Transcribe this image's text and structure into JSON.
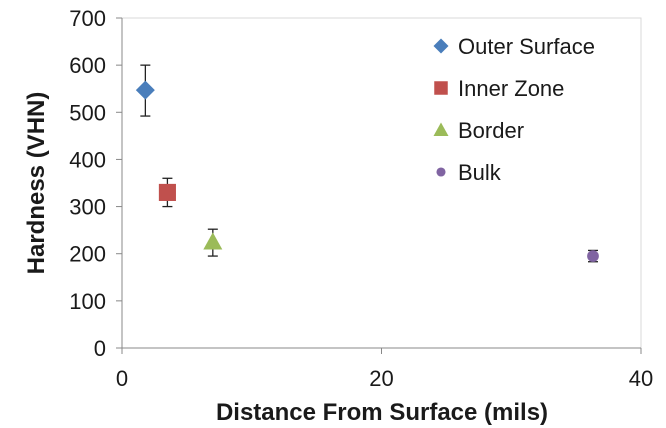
{
  "chart_data": {
    "type": "scatter",
    "xlabel": "Distance From Surface (mils)",
    "ylabel": "Hardness (VHN)",
    "xlim": [
      0,
      40
    ],
    "ylim": [
      0,
      700
    ],
    "xticks": [
      0,
      20,
      40
    ],
    "yticks": [
      0,
      100,
      200,
      300,
      400,
      500,
      600,
      700
    ],
    "grid": false,
    "legend_position": "top-right",
    "series": [
      {
        "name": "Outer Surface",
        "marker": "diamond",
        "color": "#4a7ebb",
        "points": [
          {
            "x": 1.8,
            "y": 547,
            "err_low": 55,
            "err_high": 53
          }
        ]
      },
      {
        "name": "Inner Zone",
        "marker": "square",
        "color": "#c0504d",
        "points": [
          {
            "x": 3.5,
            "y": 330,
            "err_low": 30,
            "err_high": 30
          }
        ]
      },
      {
        "name": "Border",
        "marker": "triangle",
        "color": "#9bbb59",
        "points": [
          {
            "x": 7.0,
            "y": 225,
            "err_low": 30,
            "err_high": 27
          }
        ]
      },
      {
        "name": "Bulk",
        "marker": "circle",
        "color": "#8064a2",
        "points": [
          {
            "x": 36.3,
            "y": 195,
            "err_low": 12,
            "err_high": 12
          }
        ]
      }
    ]
  }
}
